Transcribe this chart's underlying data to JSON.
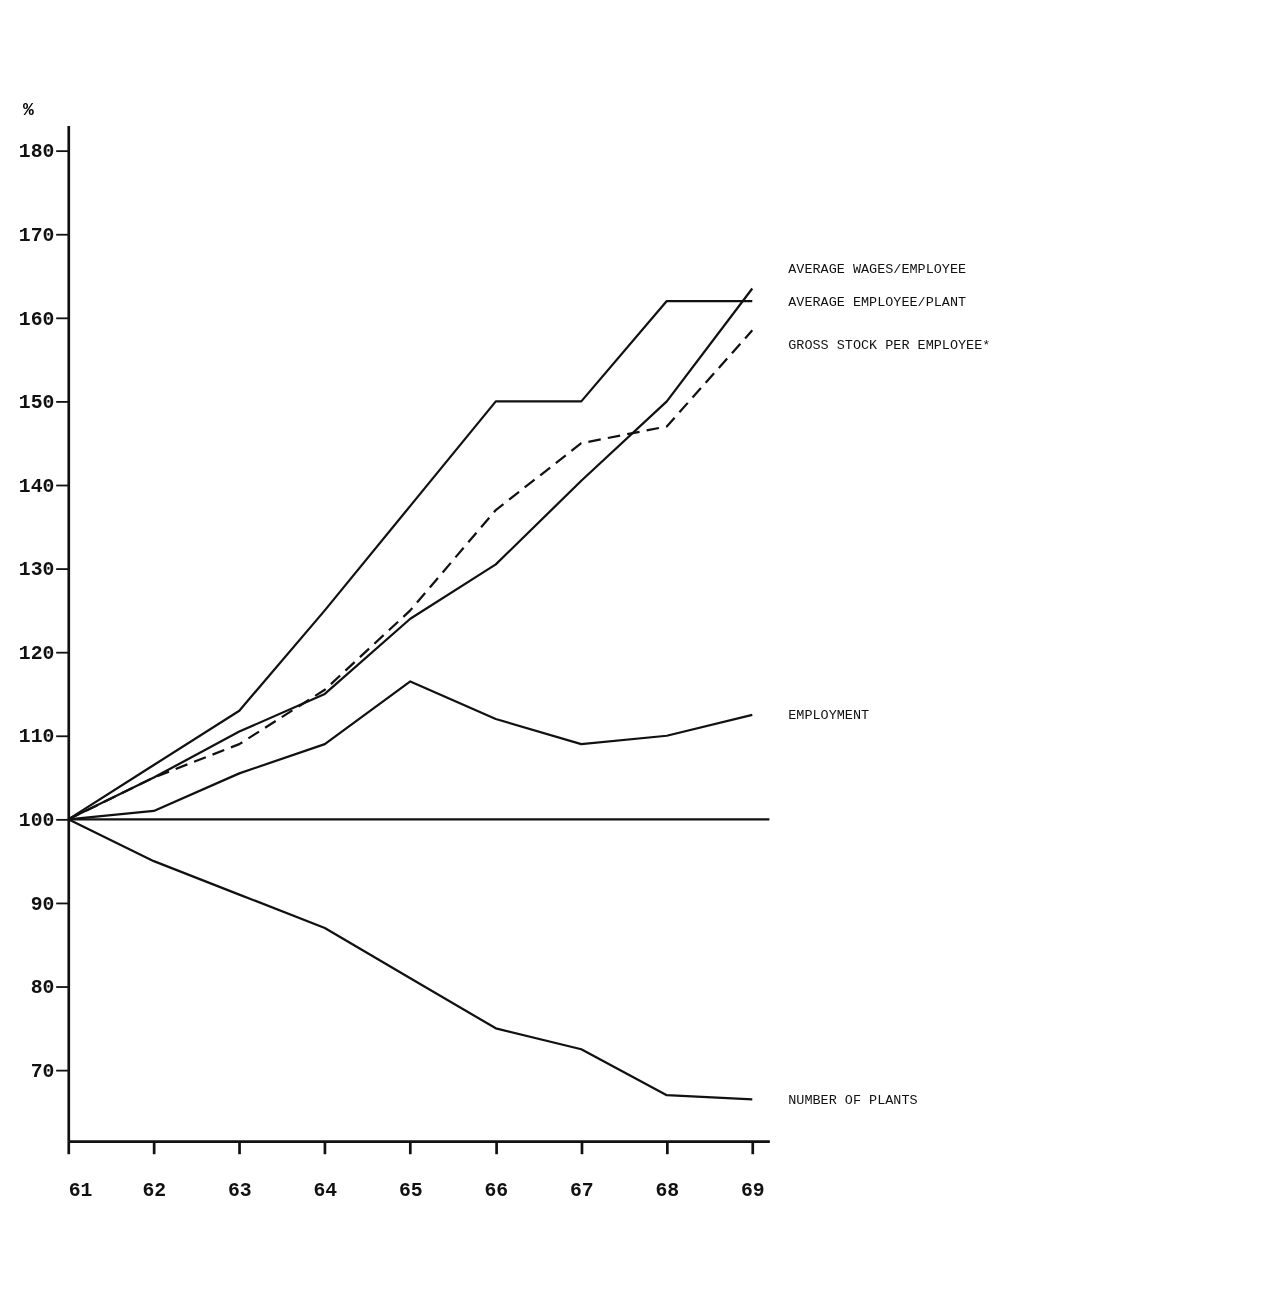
{
  "chart_data": {
    "type": "line",
    "ylabel": "%",
    "x": [
      61,
      62,
      63,
      64,
      65,
      66,
      67,
      68,
      69
    ],
    "xlim": [
      61,
      69.2
    ],
    "xticks": [
      61,
      62,
      63,
      64,
      65,
      66,
      67,
      68,
      69
    ],
    "ylim": [
      61.5,
      183
    ],
    "yticks": [
      70,
      80,
      90,
      100,
      110,
      120,
      130,
      140,
      150,
      160,
      170,
      180
    ],
    "series": [
      {
        "name": "AVERAGE WAGES/EMPLOYEE",
        "color": "#111111",
        "line_style": "solid",
        "values": [
          100,
          105,
          110.5,
          115,
          124,
          130.5,
          140.5,
          150,
          163.5
        ]
      },
      {
        "name": "AVERAGE EMPLOYEE/PLANT",
        "color": "#111111",
        "line_style": "solid",
        "values": [
          100,
          106.5,
          113,
          125,
          137.5,
          150,
          150,
          162,
          162
        ]
      },
      {
        "name": "GROSS STOCK PER EMPLOYEE*",
        "color": "#111111",
        "line_style": "dashed",
        "values": [
          100,
          105,
          109,
          115.5,
          125,
          137,
          145,
          147,
          158.5
        ]
      },
      {
        "name": "EMPLOYMENT",
        "color": "#111111",
        "line_style": "solid",
        "values": [
          100,
          101,
          105.5,
          109,
          116.5,
          112,
          109,
          110,
          112.5
        ]
      },
      {
        "name": "NUMBER OF PLANTS",
        "color": "#111111",
        "line_style": "solid",
        "values": [
          100,
          95,
          91,
          87,
          81,
          75,
          72.5,
          67,
          66.5
        ]
      }
    ],
    "ref_lines": [
      {
        "axis": "y",
        "value": 100,
        "color": "#111111",
        "line_style": "solid"
      }
    ],
    "grid": false,
    "marker": "none"
  }
}
